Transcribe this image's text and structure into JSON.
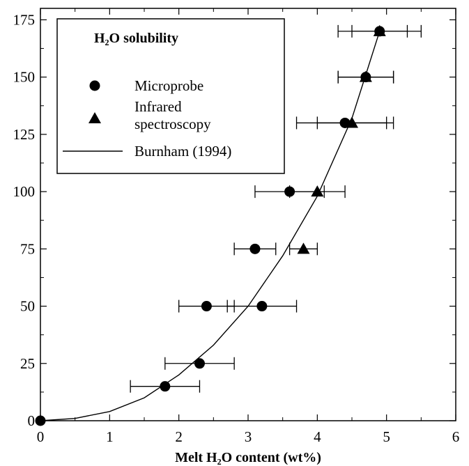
{
  "chart_data": {
    "type": "scatter",
    "title": "",
    "xlabel": "Melt H₂O content (wt%)",
    "ylabel": "",
    "xlim": [
      0,
      6
    ],
    "ylim": [
      0,
      180
    ],
    "x_ticks": [
      0,
      1,
      2,
      3,
      4,
      5,
      6
    ],
    "y_ticks": [
      0,
      25,
      50,
      75,
      100,
      125,
      150,
      175
    ],
    "grid": false,
    "legend": {
      "title": "H₂O solubility",
      "placement": "top-left",
      "entries": [
        "Microprobe",
        "Infrared spectroscopy",
        "Burnham (1994)"
      ]
    },
    "series": [
      {
        "name": "Microprobe",
        "marker": "circle",
        "points": [
          {
            "x": 0.0,
            "y": 0,
            "xerr": null
          },
          {
            "x": 1.8,
            "y": 15,
            "xerr": 0.5
          },
          {
            "x": 2.3,
            "y": 25,
            "xerr": 0.5
          },
          {
            "x": 2.4,
            "y": 50,
            "xerr": 0.4
          },
          {
            "x": 3.2,
            "y": 50,
            "xerr": 0.5
          },
          {
            "x": 3.1,
            "y": 75,
            "xerr": 0.3
          },
          {
            "x": 3.6,
            "y": 100,
            "xerr": 0.5
          },
          {
            "x": 4.4,
            "y": 130,
            "xerr": 0.7
          },
          {
            "x": 4.7,
            "y": 150,
            "xerr": 0.4
          },
          {
            "x": 4.9,
            "y": 170,
            "xerr": 0.6
          }
        ]
      },
      {
        "name": "Infrared spectroscopy",
        "marker": "triangle",
        "points": [
          {
            "x": 3.8,
            "y": 75,
            "xerr": 0.2
          },
          {
            "x": 4.0,
            "y": 100,
            "xerr": 0.4
          },
          {
            "x": 4.5,
            "y": 130,
            "xerr": 0.5
          },
          {
            "x": 4.7,
            "y": 150,
            "xerr": 0.4
          },
          {
            "x": 4.9,
            "y": 170,
            "xerr": 0.4
          }
        ]
      },
      {
        "name": "Burnham (1994)",
        "marker": "line",
        "points": [
          {
            "x": 0.0,
            "y": 0
          },
          {
            "x": 0.5,
            "y": 1
          },
          {
            "x": 1.0,
            "y": 4
          },
          {
            "x": 1.5,
            "y": 10
          },
          {
            "x": 2.0,
            "y": 20
          },
          {
            "x": 2.5,
            "y": 33
          },
          {
            "x": 3.0,
            "y": 50
          },
          {
            "x": 3.5,
            "y": 72
          },
          {
            "x": 4.0,
            "y": 98
          },
          {
            "x": 4.5,
            "y": 132
          },
          {
            "x": 4.9,
            "y": 170
          }
        ]
      }
    ]
  }
}
